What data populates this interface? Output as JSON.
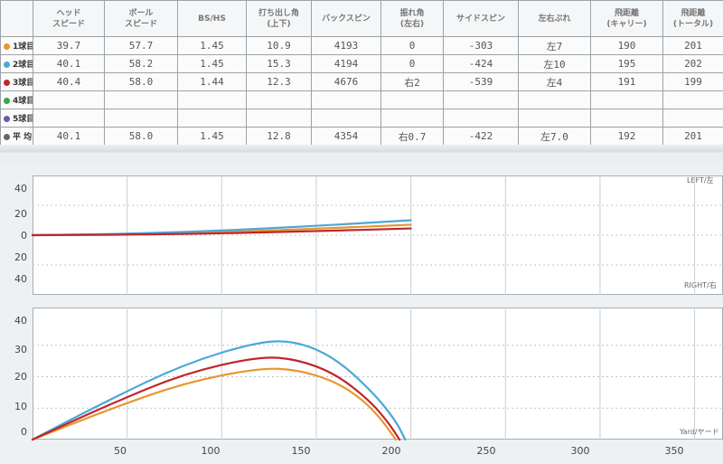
{
  "table": {
    "headers": [
      {
        "line1": "",
        "line2": ""
      },
      {
        "line1": "ヘッド",
        "line2": "スピード"
      },
      {
        "line1": "ボール",
        "line2": "スピード"
      },
      {
        "line1": "BS/HS",
        "line2": ""
      },
      {
        "line1": "打ち出し角",
        "line2": "(上下)"
      },
      {
        "line1": "バックスピン",
        "line2": ""
      },
      {
        "line1": "振れ角",
        "line2": "(左右)"
      },
      {
        "line1": "サイドスピン",
        "line2": ""
      },
      {
        "line1": "左右ぶれ",
        "line2": ""
      },
      {
        "line1": "飛距離",
        "line2": "(キャリー)"
      },
      {
        "line1": "飛距離",
        "line2": "(トータル)"
      }
    ],
    "rows": [
      {
        "label": "1球目",
        "color": "#e8962e",
        "cells": [
          "39.7",
          "57.7",
          "1.45",
          "10.9",
          "4193",
          "0",
          "-303",
          "左7",
          "190",
          "201"
        ]
      },
      {
        "label": "2球目",
        "color": "#4aa8d8",
        "cells": [
          "40.1",
          "58.2",
          "1.45",
          "15.3",
          "4194",
          "0",
          "-424",
          "左10",
          "195",
          "202"
        ]
      },
      {
        "label": "3球目",
        "color": "#c0262b",
        "cells": [
          "40.4",
          "58.0",
          "1.44",
          "12.3",
          "4676",
          "右2",
          "-539",
          "左4",
          "191",
          "199"
        ]
      },
      {
        "label": "4球目",
        "color": "#3aa64a",
        "cells": [
          "",
          "",
          "",
          "",
          "",
          "",
          "",
          "",
          "",
          ""
        ]
      },
      {
        "label": "5球目",
        "color": "#6a5aa8",
        "cells": [
          "",
          "",
          "",
          "",
          "",
          "",
          "",
          "",
          "",
          ""
        ]
      },
      {
        "label": "平 均",
        "color": "#666666",
        "cells": [
          "40.1",
          "58.0",
          "1.45",
          "12.8",
          "4354",
          "右0.7",
          "-422",
          "左7.0",
          "192",
          "201"
        ]
      }
    ]
  },
  "top_view": {
    "y_ticks": [
      "40",
      "20",
      "0",
      "20",
      "40"
    ],
    "left_label": "LEFT/左",
    "right_label": "RIGHT/右"
  },
  "side_view": {
    "y_ticks": [
      "40",
      "30",
      "20",
      "10",
      "0"
    ],
    "x_ticks": [
      "50",
      "100",
      "150",
      "200",
      "250",
      "300",
      "350"
    ],
    "x_label": "Yard/ヤード"
  },
  "chart_data": [
    {
      "type": "line",
      "view": "top",
      "ylim": [
        -40,
        40
      ],
      "xlim": [
        0,
        365
      ],
      "series": [
        {
          "color": "#e8962e",
          "x": [
            0,
            50,
            100,
            150,
            200
          ],
          "y": [
            0,
            0.6,
            2,
            4.3,
            7
          ]
        },
        {
          "color": "#4aa8d8",
          "x": [
            0,
            50,
            100,
            150,
            200
          ],
          "y": [
            0,
            0.9,
            3,
            6.2,
            10
          ]
        },
        {
          "color": "#c0262b",
          "x": [
            0,
            50,
            100,
            150,
            200
          ],
          "y": [
            0,
            0.3,
            1.2,
            2.7,
            4.5
          ]
        }
      ]
    },
    {
      "type": "line",
      "view": "side",
      "ylim": [
        0,
        42
      ],
      "xlim": [
        0,
        365
      ],
      "series": [
        {
          "color": "#e8962e",
          "x": [
            0,
            40,
            80,
            120,
            140,
            160,
            175,
            185,
            192
          ],
          "y": [
            0,
            9.5,
            18,
            22.8,
            22.2,
            18.5,
            12.5,
            6,
            0
          ]
        },
        {
          "color": "#4aa8d8",
          "x": [
            0,
            40,
            80,
            120,
            140,
            160,
            180,
            192,
            197
          ],
          "y": [
            0,
            12.5,
            24,
            31.3,
            31.2,
            26,
            15,
            6,
            0
          ]
        },
        {
          "color": "#c0262b",
          "x": [
            0,
            40,
            80,
            120,
            140,
            160,
            178,
            188,
            194
          ],
          "y": [
            0,
            11,
            21,
            26.5,
            25.5,
            21,
            12.5,
            5.5,
            0
          ]
        }
      ]
    }
  ]
}
